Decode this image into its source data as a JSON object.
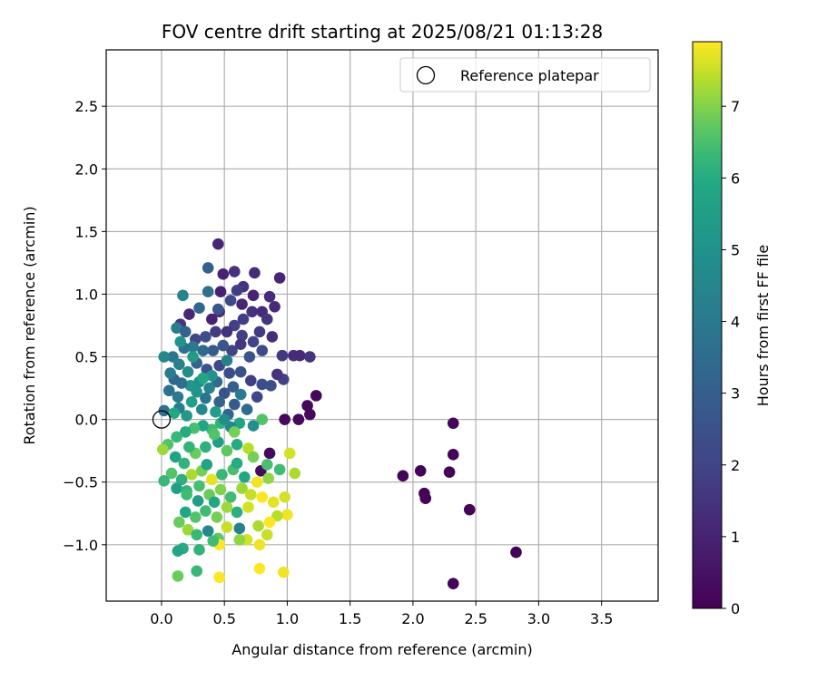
{
  "chart_data": {
    "type": "scatter",
    "title": "FOV centre drift starting at 2025/08/21 01:13:28",
    "xlabel": "Angular distance from reference (arcmin)",
    "ylabel": "Rotation from reference (arcmin)",
    "xlim": [
      -0.44,
      3.95
    ],
    "ylim": [
      -1.45,
      2.95
    ],
    "xticks": [
      0.0,
      0.5,
      1.0,
      1.5,
      2.0,
      2.5,
      3.0,
      3.5
    ],
    "yticks": [
      -1.0,
      -0.5,
      0.0,
      0.5,
      1.0,
      1.5,
      2.0,
      2.5
    ],
    "grid": true,
    "legend": {
      "position": "top-right",
      "label": "Reference platepar"
    },
    "reference_point": {
      "x": 0.0,
      "y": 0.0
    },
    "colorbar": {
      "label": "Hours from first FF file",
      "range": [
        0,
        7.9
      ],
      "ticks": [
        0,
        1,
        2,
        3,
        4,
        5,
        6,
        7
      ],
      "colormap": "viridis"
    },
    "points": [
      {
        "x": 2.32,
        "y": -0.03,
        "h": 0.1
      },
      {
        "x": 2.32,
        "y": -0.28,
        "h": 0.1
      },
      {
        "x": 2.29,
        "y": -0.42,
        "h": 0.1
      },
      {
        "x": 2.06,
        "y": -0.41,
        "h": 0.1
      },
      {
        "x": 1.92,
        "y": -0.45,
        "h": 0.1
      },
      {
        "x": 2.09,
        "y": -0.59,
        "h": 0.1
      },
      {
        "x": 2.1,
        "y": -0.63,
        "h": 0.1
      },
      {
        "x": 2.45,
        "y": -0.72,
        "h": 0.1
      },
      {
        "x": 2.82,
        "y": -1.06,
        "h": 0.1
      },
      {
        "x": 2.32,
        "y": -1.31,
        "h": 0.1
      },
      {
        "x": 1.23,
        "y": 0.19,
        "h": 0.2
      },
      {
        "x": 1.16,
        "y": 0.11,
        "h": 0.2
      },
      {
        "x": 1.18,
        "y": 0.04,
        "h": 0.2
      },
      {
        "x": 1.09,
        "y": 0.0,
        "h": 0.2
      },
      {
        "x": 0.98,
        "y": 0.0,
        "h": 0.2
      },
      {
        "x": 0.86,
        "y": -0.27,
        "h": 0.2
      },
      {
        "x": 0.79,
        "y": -0.41,
        "h": 0.3
      },
      {
        "x": 1.05,
        "y": 0.51,
        "h": 1.3
      },
      {
        "x": 1.1,
        "y": 0.51,
        "h": 1.2
      },
      {
        "x": 1.18,
        "y": 0.5,
        "h": 1.5
      },
      {
        "x": 0.96,
        "y": 0.51,
        "h": 1.6
      },
      {
        "x": 0.94,
        "y": 1.13,
        "h": 1.1
      },
      {
        "x": 0.86,
        "y": 0.98,
        "h": 1.3
      },
      {
        "x": 0.74,
        "y": 1.17,
        "h": 1.2
      },
      {
        "x": 0.58,
        "y": 1.18,
        "h": 1.4
      },
      {
        "x": 0.49,
        "y": 1.16,
        "h": 1.0
      },
      {
        "x": 0.45,
        "y": 1.4,
        "h": 1.1
      },
      {
        "x": 0.37,
        "y": 1.21,
        "h": 3.0
      },
      {
        "x": 0.65,
        "y": 1.06,
        "h": 1.5
      },
      {
        "x": 0.6,
        "y": 1.03,
        "h": 1.8
      },
      {
        "x": 0.47,
        "y": 1.02,
        "h": 0.9
      },
      {
        "x": 0.73,
        "y": 0.99,
        "h": 1.0
      },
      {
        "x": 0.8,
        "y": 0.86,
        "h": 1.3
      },
      {
        "x": 0.9,
        "y": 0.9,
        "h": 1.2
      },
      {
        "x": 0.84,
        "y": 0.8,
        "h": 1.6
      },
      {
        "x": 0.72,
        "y": 0.86,
        "h": 1.4
      },
      {
        "x": 0.65,
        "y": 0.8,
        "h": 1.8
      },
      {
        "x": 0.58,
        "y": 0.75,
        "h": 1.9
      },
      {
        "x": 0.46,
        "y": 0.86,
        "h": 1.3
      },
      {
        "x": 0.4,
        "y": 0.8,
        "h": 1.0
      },
      {
        "x": 0.3,
        "y": 0.89,
        "h": 3.3
      },
      {
        "x": 0.22,
        "y": 0.84,
        "h": 1.1
      },
      {
        "x": 0.15,
        "y": 0.76,
        "h": 1.5
      },
      {
        "x": 0.12,
        "y": 0.73,
        "h": 4.2
      },
      {
        "x": 0.19,
        "y": 0.7,
        "h": 3.1
      },
      {
        "x": 0.27,
        "y": 0.64,
        "h": 2.0
      },
      {
        "x": 0.35,
        "y": 0.66,
        "h": 2.4
      },
      {
        "x": 0.43,
        "y": 0.7,
        "h": 1.7
      },
      {
        "x": 0.52,
        "y": 0.7,
        "h": 1.4
      },
      {
        "x": 0.64,
        "y": 0.67,
        "h": 1.9
      },
      {
        "x": 0.73,
        "y": 0.62,
        "h": 2.0
      },
      {
        "x": 0.8,
        "y": 0.55,
        "h": 2.2
      },
      {
        "x": 0.7,
        "y": 0.5,
        "h": 2.6
      },
      {
        "x": 0.63,
        "y": 0.6,
        "h": 1.6
      },
      {
        "x": 0.56,
        "y": 0.55,
        "h": 2.0
      },
      {
        "x": 0.49,
        "y": 0.59,
        "h": 2.7
      },
      {
        "x": 0.41,
        "y": 0.55,
        "h": 2.9
      },
      {
        "x": 0.33,
        "y": 0.55,
        "h": 3.4
      },
      {
        "x": 0.25,
        "y": 0.58,
        "h": 4.0
      },
      {
        "x": 0.18,
        "y": 0.57,
        "h": 3.7
      },
      {
        "x": 0.09,
        "y": 0.5,
        "h": 3.9
      },
      {
        "x": 0.02,
        "y": 0.5,
        "h": 4.6
      },
      {
        "x": 0.14,
        "y": 0.44,
        "h": 4.3
      },
      {
        "x": 0.21,
        "y": 0.38,
        "h": 4.8
      },
      {
        "x": 0.28,
        "y": 0.45,
        "h": 3.2
      },
      {
        "x": 0.36,
        "y": 0.4,
        "h": 2.5
      },
      {
        "x": 0.46,
        "y": 0.43,
        "h": 2.1
      },
      {
        "x": 0.54,
        "y": 0.37,
        "h": 2.3
      },
      {
        "x": 0.63,
        "y": 0.38,
        "h": 2.6
      },
      {
        "x": 0.71,
        "y": 0.31,
        "h": 1.8
      },
      {
        "x": 0.8,
        "y": 0.28,
        "h": 2.3
      },
      {
        "x": 0.87,
        "y": 0.27,
        "h": 2.4
      },
      {
        "x": 0.97,
        "y": 0.32,
        "h": 1.9
      },
      {
        "x": 0.92,
        "y": 0.36,
        "h": 1.5
      },
      {
        "x": 0.76,
        "y": 0.18,
        "h": 2.1
      },
      {
        "x": 0.63,
        "y": 0.2,
        "h": 4.1
      },
      {
        "x": 0.57,
        "y": 0.26,
        "h": 3.0
      },
      {
        "x": 0.5,
        "y": 0.21,
        "h": 2.6
      },
      {
        "x": 0.44,
        "y": 0.3,
        "h": 3.5
      },
      {
        "x": 0.38,
        "y": 0.25,
        "h": 4.4
      },
      {
        "x": 0.3,
        "y": 0.3,
        "h": 4.9
      },
      {
        "x": 0.23,
        "y": 0.27,
        "h": 5.2
      },
      {
        "x": 0.16,
        "y": 0.29,
        "h": 3.6
      },
      {
        "x": 0.1,
        "y": 0.32,
        "h": 3.3
      },
      {
        "x": 0.06,
        "y": 0.23,
        "h": 3.7
      },
      {
        "x": 0.13,
        "y": 0.18,
        "h": 4.0
      },
      {
        "x": 0.24,
        "y": 0.14,
        "h": 5.6
      },
      {
        "x": 0.35,
        "y": 0.17,
        "h": 3.8
      },
      {
        "x": 0.46,
        "y": 0.14,
        "h": 3.1
      },
      {
        "x": 0.58,
        "y": 0.12,
        "h": 2.9
      },
      {
        "x": 0.68,
        "y": 0.08,
        "h": 3.5
      },
      {
        "x": 0.53,
        "y": 0.04,
        "h": 3.2
      },
      {
        "x": 0.43,
        "y": 0.06,
        "h": 5.5
      },
      {
        "x": 0.32,
        "y": 0.08,
        "h": 4.6
      },
      {
        "x": 0.2,
        "y": 0.03,
        "h": 5.3
      },
      {
        "x": 0.14,
        "y": 0.09,
        "h": 4.2
      },
      {
        "x": 0.02,
        "y": 0.07,
        "h": 3.7
      },
      {
        "x": 0.8,
        "y": 0.0,
        "h": 6.6
      },
      {
        "x": 0.73,
        "y": -0.05,
        "h": 4.9
      },
      {
        "x": 0.62,
        "y": -0.03,
        "h": 5.8
      },
      {
        "x": 0.55,
        "y": -0.06,
        "h": 4.6
      },
      {
        "x": 0.47,
        "y": -0.03,
        "h": 6.2
      },
      {
        "x": 0.4,
        "y": -0.08,
        "h": 6.4
      },
      {
        "x": 0.33,
        "y": -0.05,
        "h": 5.8
      },
      {
        "x": 0.26,
        "y": -0.07,
        "h": 6.5
      },
      {
        "x": 0.19,
        "y": -0.1,
        "h": 6.0
      },
      {
        "x": 0.12,
        "y": -0.14,
        "h": 6.3
      },
      {
        "x": 0.05,
        "y": -0.2,
        "h": 6.6
      },
      {
        "x": 0.01,
        "y": -0.24,
        "h": 7.2
      },
      {
        "x": 0.11,
        "y": -0.3,
        "h": 5.7
      },
      {
        "x": 0.18,
        "y": -0.35,
        "h": 6.2
      },
      {
        "x": 0.27,
        "y": -0.27,
        "h": 6.8
      },
      {
        "x": 0.35,
        "y": -0.22,
        "h": 6.1
      },
      {
        "x": 0.45,
        "y": -0.18,
        "h": 5.5
      },
      {
        "x": 0.52,
        "y": -0.25,
        "h": 6.7
      },
      {
        "x": 0.6,
        "y": -0.2,
        "h": 6.0
      },
      {
        "x": 0.69,
        "y": -0.23,
        "h": 7.4
      },
      {
        "x": 0.73,
        "y": -0.3,
        "h": 6.9
      },
      {
        "x": 0.84,
        "y": -0.36,
        "h": 6.5
      },
      {
        "x": 0.94,
        "y": -0.4,
        "h": 6.4
      },
      {
        "x": 1.02,
        "y": -0.27,
        "h": 7.6
      },
      {
        "x": 1.06,
        "y": -0.43,
        "h": 7.3
      },
      {
        "x": 0.85,
        "y": -0.47,
        "h": 7.1
      },
      {
        "x": 0.76,
        "y": -0.5,
        "h": 7.8
      },
      {
        "x": 0.66,
        "y": -0.46,
        "h": 5.9
      },
      {
        "x": 0.57,
        "y": -0.4,
        "h": 6.5
      },
      {
        "x": 0.48,
        "y": -0.44,
        "h": 6.3
      },
      {
        "x": 0.4,
        "y": -0.48,
        "h": 7.7
      },
      {
        "x": 0.32,
        "y": -0.41,
        "h": 6.9
      },
      {
        "x": 0.24,
        "y": -0.44,
        "h": 7.3
      },
      {
        "x": 0.16,
        "y": -0.48,
        "h": 6.1
      },
      {
        "x": 0.08,
        "y": -0.43,
        "h": 6.6
      },
      {
        "x": 0.02,
        "y": -0.49,
        "h": 6.3
      },
      {
        "x": 0.12,
        "y": -0.55,
        "h": 5.6
      },
      {
        "x": 0.2,
        "y": -0.57,
        "h": 6.2
      },
      {
        "x": 0.3,
        "y": -0.53,
        "h": 6.5
      },
      {
        "x": 0.38,
        "y": -0.6,
        "h": 6.8
      },
      {
        "x": 0.47,
        "y": -0.56,
        "h": 7.0
      },
      {
        "x": 0.55,
        "y": -0.62,
        "h": 6.4
      },
      {
        "x": 0.64,
        "y": -0.55,
        "h": 7.2
      },
      {
        "x": 0.71,
        "y": -0.6,
        "h": 7.5
      },
      {
        "x": 0.8,
        "y": -0.62,
        "h": 7.9
      },
      {
        "x": 0.89,
        "y": -0.66,
        "h": 7.7
      },
      {
        "x": 0.98,
        "y": -0.62,
        "h": 7.6
      },
      {
        "x": 1.0,
        "y": -0.76,
        "h": 7.8
      },
      {
        "x": 0.92,
        "y": -0.77,
        "h": 7.4
      },
      {
        "x": 0.86,
        "y": -0.82,
        "h": 7.9
      },
      {
        "x": 0.77,
        "y": -0.85,
        "h": 7.3
      },
      {
        "x": 0.69,
        "y": -0.7,
        "h": 7.6
      },
      {
        "x": 0.6,
        "y": -0.74,
        "h": 6.1
      },
      {
        "x": 0.52,
        "y": -0.7,
        "h": 7.2
      },
      {
        "x": 0.44,
        "y": -0.78,
        "h": 6.9
      },
      {
        "x": 0.35,
        "y": -0.73,
        "h": 6.4
      },
      {
        "x": 0.27,
        "y": -0.78,
        "h": 6.6
      },
      {
        "x": 0.19,
        "y": -0.74,
        "h": 5.9
      },
      {
        "x": 0.14,
        "y": -0.82,
        "h": 6.8
      },
      {
        "x": 0.21,
        "y": -0.88,
        "h": 7.2
      },
      {
        "x": 0.28,
        "y": -0.92,
        "h": 6.3
      },
      {
        "x": 0.37,
        "y": -0.89,
        "h": 4.6
      },
      {
        "x": 0.45,
        "y": -0.95,
        "h": 6.7
      },
      {
        "x": 0.52,
        "y": -0.86,
        "h": 7.5
      },
      {
        "x": 0.62,
        "y": -0.87,
        "h": 4.3
      },
      {
        "x": 0.68,
        "y": -0.96,
        "h": 7.6
      },
      {
        "x": 0.78,
        "y": -1.0,
        "h": 7.8
      },
      {
        "x": 0.84,
        "y": -0.92,
        "h": 7.5
      },
      {
        "x": 0.62,
        "y": -0.96,
        "h": 7.1
      },
      {
        "x": 0.46,
        "y": -1.0,
        "h": 7.9
      },
      {
        "x": 0.41,
        "y": -0.97,
        "h": 6.4
      },
      {
        "x": 0.3,
        "y": -1.04,
        "h": 6.2
      },
      {
        "x": 0.17,
        "y": -1.03,
        "h": 6.0
      },
      {
        "x": 0.13,
        "y": -1.05,
        "h": 5.8
      },
      {
        "x": 0.78,
        "y": -1.19,
        "h": 7.9
      },
      {
        "x": 0.97,
        "y": -1.22,
        "h": 7.8
      },
      {
        "x": 0.46,
        "y": -1.26,
        "h": 7.9
      },
      {
        "x": 0.28,
        "y": -1.21,
        "h": 6.3
      },
      {
        "x": 0.13,
        "y": -1.25,
        "h": 6.8
      },
      {
        "x": 0.17,
        "y": 0.99,
        "h": 4.4
      },
      {
        "x": 0.37,
        "y": 1.02,
        "h": 3.7
      },
      {
        "x": 0.15,
        "y": 0.62,
        "h": 5.0
      },
      {
        "x": 0.07,
        "y": 0.37,
        "h": 4.1
      },
      {
        "x": 0.4,
        "y": 0.35,
        "h": 5.0
      },
      {
        "x": 0.52,
        "y": 0.47,
        "h": 4.3
      },
      {
        "x": 0.25,
        "y": 0.5,
        "h": 5.4
      },
      {
        "x": 0.33,
        "y": 0.33,
        "h": 5.8
      },
      {
        "x": 0.1,
        "y": 0.05,
        "h": 5.9
      },
      {
        "x": 0.42,
        "y": -0.12,
        "h": 6.6
      },
      {
        "x": 0.58,
        "y": -0.1,
        "h": 6.9
      },
      {
        "x": 0.22,
        "y": -0.22,
        "h": 6.2
      },
      {
        "x": 0.36,
        "y": -0.36,
        "h": 5.7
      },
      {
        "x": 0.6,
        "y": -0.35,
        "h": 6.0
      },
      {
        "x": 0.29,
        "y": -0.65,
        "h": 5.5
      },
      {
        "x": 0.42,
        "y": -0.66,
        "h": 5.9
      },
      {
        "x": 0.2,
        "y": -0.6,
        "h": 6.4
      },
      {
        "x": 0.5,
        "y": 0.0,
        "h": 4.8
      },
      {
        "x": 0.28,
        "y": 0.22,
        "h": 5.1
      },
      {
        "x": 0.45,
        "y": 0.88,
        "h": 2.7
      },
      {
        "x": 0.64,
        "y": 0.92,
        "h": 1.1
      },
      {
        "x": 0.55,
        "y": 0.95,
        "h": 2.2
      },
      {
        "x": 0.78,
        "y": 0.7,
        "h": 1.7
      },
      {
        "x": 0.88,
        "y": 0.66,
        "h": 1.3
      }
    ]
  }
}
